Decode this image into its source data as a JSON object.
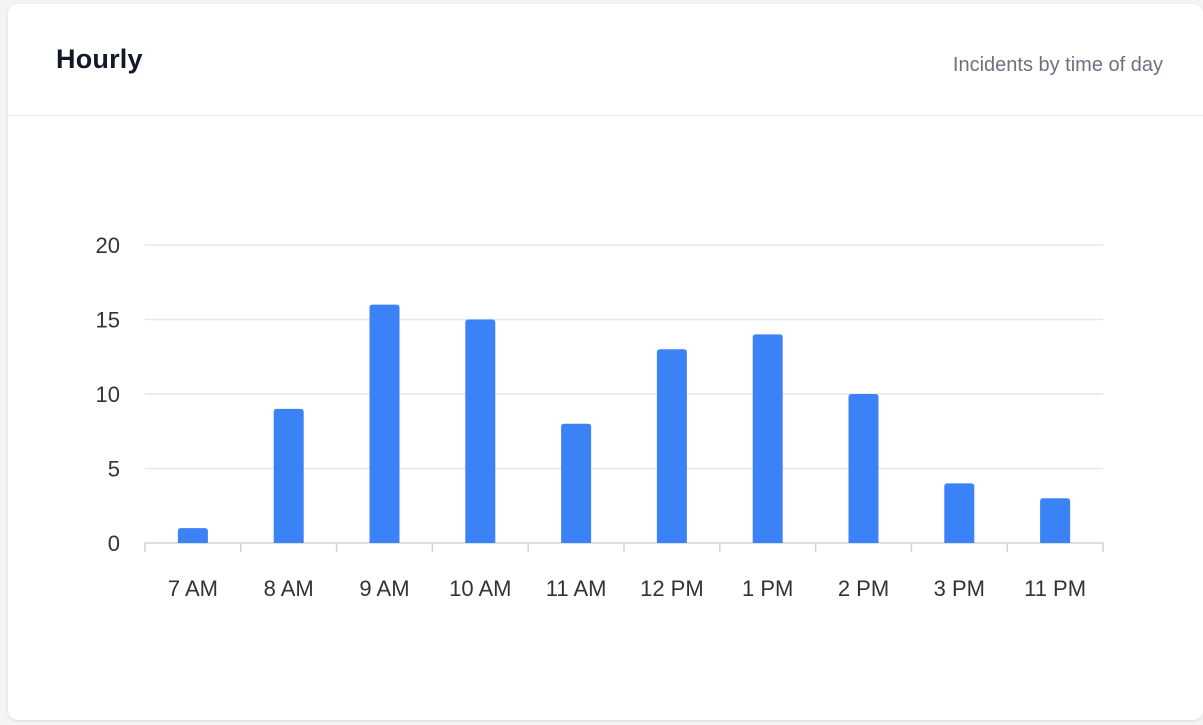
{
  "header": {
    "title": "Hourly",
    "subtitle": "Incidents by time of day"
  },
  "colors": {
    "bar": "#3b82f6",
    "grid": "#e5e7eb",
    "axis": "#cfd3d8"
  },
  "chart_data": {
    "type": "bar",
    "categories": [
      "7 AM",
      "8 AM",
      "9 AM",
      "10 AM",
      "11 AM",
      "12 PM",
      "1 PM",
      "2 PM",
      "3 PM",
      "11 PM"
    ],
    "values": [
      1,
      9,
      16,
      15,
      8,
      13,
      14,
      10,
      4,
      3
    ],
    "ylim": [
      0,
      20
    ],
    "yticks": [
      "0",
      "5",
      "10",
      "15",
      "20"
    ],
    "grid": true,
    "legend": "none"
  }
}
